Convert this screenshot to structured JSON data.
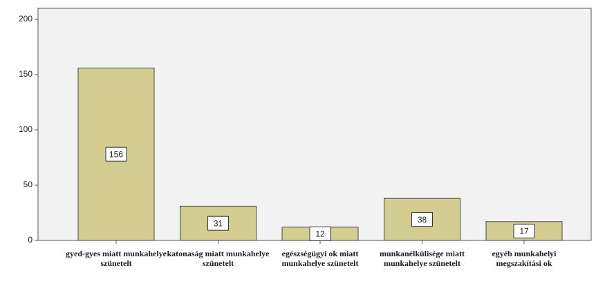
{
  "chart_data": {
    "type": "bar",
    "categories": [
      "gyed-gyes miatt munkahelye szünetelt",
      "katonaság miatt munkahelye szünetelt",
      "egészségügyi ok miatt munkahelye szünetelt",
      "munkanélkülisége miatt munkahelye szünetelt",
      "egyéb munkahelyi megszakítási ok"
    ],
    "values": [
      156,
      31,
      12,
      38,
      17
    ],
    "color": "#d3cd91",
    "ylim": [
      0,
      210
    ],
    "yticks": [
      0,
      50,
      100,
      150,
      200
    ],
    "grid": false
  }
}
